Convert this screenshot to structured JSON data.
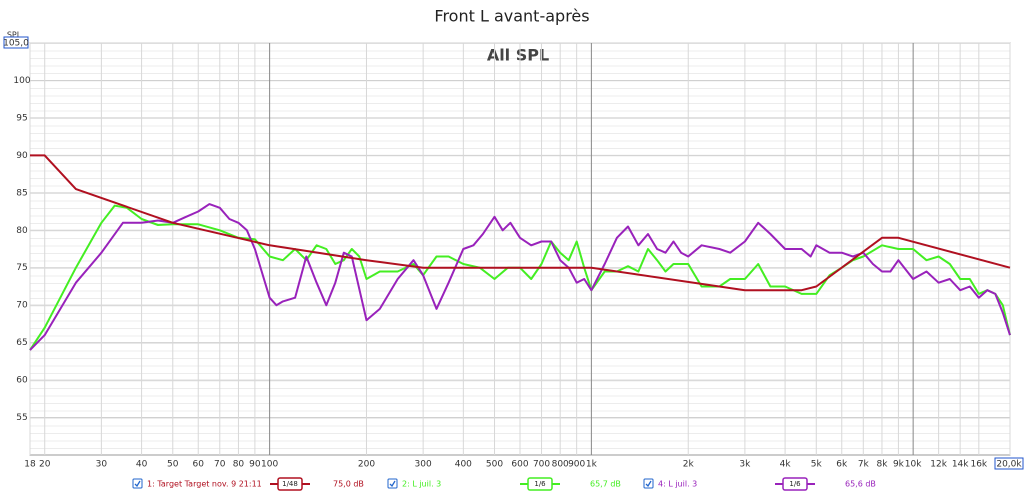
{
  "chart_data": {
    "type": "line",
    "title": "Front L avant-après",
    "subtitle": "All SPL",
    "y_axis_label": "SPL",
    "xscale": "log",
    "grid": true,
    "xlim": [
      18,
      20000
    ],
    "ylim": [
      50,
      105
    ],
    "xticks": [
      18,
      20,
      30,
      40,
      50,
      60,
      70,
      80,
      90,
      100,
      200,
      300,
      400,
      500,
      600,
      700,
      800,
      900,
      {
        "value": 1000,
        "label": "1k"
      },
      {
        "value": 2000,
        "label": "2k"
      },
      {
        "value": 3000,
        "label": "3k"
      },
      {
        "value": 4000,
        "label": "4k"
      },
      {
        "value": 5000,
        "label": "5k"
      },
      {
        "value": 6000,
        "label": "6k"
      },
      {
        "value": 7000,
        "label": "7k"
      },
      {
        "value": 8000,
        "label": "8k"
      },
      {
        "value": 9000,
        "label": "9k"
      },
      {
        "value": 10000,
        "label": "10k"
      },
      {
        "value": 12000,
        "label": "12k"
      },
      {
        "value": 14000,
        "label": "14k"
      },
      {
        "value": 16000,
        "label": "16k"
      },
      {
        "value": 20000,
        "label": "20,0k"
      }
    ],
    "yticks": [
      55,
      60,
      65,
      70,
      75,
      80,
      85,
      90,
      95,
      100,
      {
        "value": 105,
        "label": "105,0"
      }
    ],
    "series": [
      {
        "name": "1: Target Target nov. 9 21:11",
        "color": "#b01020",
        "smoothing": "1/48",
        "level": "75,0 dB",
        "x": [
          18,
          20,
          25,
          50,
          100,
          200,
          300,
          1000,
          3000,
          4500,
          5000,
          8000,
          9000,
          20000
        ],
        "values": [
          90,
          90,
          85.5,
          81,
          78,
          76,
          75,
          75,
          72,
          72,
          72.5,
          79,
          79,
          75
        ]
      },
      {
        "name": "2: L juil. 3",
        "color": "#44ee22",
        "smoothing": "1/6",
        "level": "65,7 dB",
        "x": [
          18,
          20,
          25,
          30,
          33,
          36,
          40,
          45,
          50,
          60,
          70,
          80,
          90,
          100,
          110,
          120,
          130,
          140,
          150,
          160,
          170,
          180,
          190,
          200,
          220,
          250,
          280,
          300,
          330,
          360,
          400,
          450,
          500,
          550,
          600,
          650,
          700,
          750,
          800,
          850,
          900,
          950,
          1000,
          1100,
          1200,
          1300,
          1400,
          1500,
          1600,
          1700,
          1800,
          2000,
          2200,
          2500,
          2700,
          3000,
          3300,
          3600,
          4000,
          4500,
          4800,
          5000,
          5500,
          6000,
          6500,
          7000,
          8000,
          9000,
          10000,
          11000,
          12000,
          13000,
          14000,
          15000,
          16000,
          17000,
          18000,
          19000,
          20000
        ],
        "values": [
          64,
          67,
          75,
          81,
          83.3,
          83,
          81.5,
          80.7,
          80.8,
          80.8,
          80,
          79,
          78.8,
          76.5,
          76,
          77.5,
          76,
          78,
          77.5,
          75.5,
          76,
          77.5,
          76.5,
          73.5,
          74.5,
          74.5,
          75.5,
          74,
          76.5,
          76.5,
          75.5,
          75,
          73.5,
          75,
          75,
          73.5,
          75.5,
          78.5,
          77,
          76,
          78.5,
          75,
          72,
          74.5,
          74.5,
          75.2,
          74.5,
          77.5,
          76,
          74.5,
          75.5,
          75.5,
          72.5,
          72.5,
          73.5,
          73.5,
          75.5,
          72.5,
          72.5,
          71.5,
          71.5,
          71.5,
          74,
          75,
          76,
          76.5,
          78,
          77.5,
          77.5,
          76,
          76.5,
          75.5,
          73.5,
          73.5,
          71.5,
          72,
          71.5,
          70,
          66
        ]
      },
      {
        "name": "4: L juil. 3",
        "color": "#9922bb",
        "smoothing": "1/6",
        "level": "65,6 dB",
        "x": [
          18,
          20,
          25,
          30,
          35,
          40,
          45,
          50,
          55,
          60,
          65,
          70,
          75,
          80,
          85,
          90,
          100,
          105,
          110,
          120,
          130,
          140,
          150,
          160,
          170,
          180,
          200,
          220,
          250,
          280,
          300,
          330,
          360,
          400,
          430,
          460,
          500,
          530,
          560,
          600,
          650,
          700,
          750,
          800,
          850,
          900,
          950,
          1000,
          1100,
          1200,
          1300,
          1400,
          1500,
          1600,
          1700,
          1800,
          1900,
          2000,
          2200,
          2500,
          2700,
          3000,
          3300,
          3600,
          4000,
          4500,
          4800,
          5000,
          5500,
          6000,
          6500,
          7000,
          7500,
          8000,
          8500,
          9000,
          10000,
          11000,
          12000,
          13000,
          14000,
          15000,
          16000,
          17000,
          18000,
          19000,
          20000
        ],
        "values": [
          64,
          66,
          73,
          77,
          81,
          81,
          81.3,
          81,
          81.8,
          82.5,
          83.5,
          83,
          81.5,
          81,
          80,
          77.5,
          71,
          70,
          70.5,
          71,
          76.5,
          73,
          70,
          73,
          77,
          76.5,
          68,
          69.5,
          73.5,
          76,
          74,
          69.5,
          73,
          77.5,
          78,
          79.5,
          81.8,
          80,
          81,
          79,
          78,
          78.5,
          78.5,
          76,
          75,
          73,
          73.5,
          72,
          75.5,
          79,
          80.5,
          78,
          79.5,
          77.5,
          77,
          78.5,
          77,
          76.5,
          78,
          77.5,
          77,
          78.5,
          81,
          79.5,
          77.5,
          77.5,
          76.5,
          78,
          77,
          77,
          76.5,
          77,
          75.5,
          74.5,
          74.5,
          76,
          73.5,
          74.5,
          73,
          73.5,
          72,
          72.5,
          71,
          72,
          71.5,
          69,
          66
        ]
      }
    ]
  }
}
